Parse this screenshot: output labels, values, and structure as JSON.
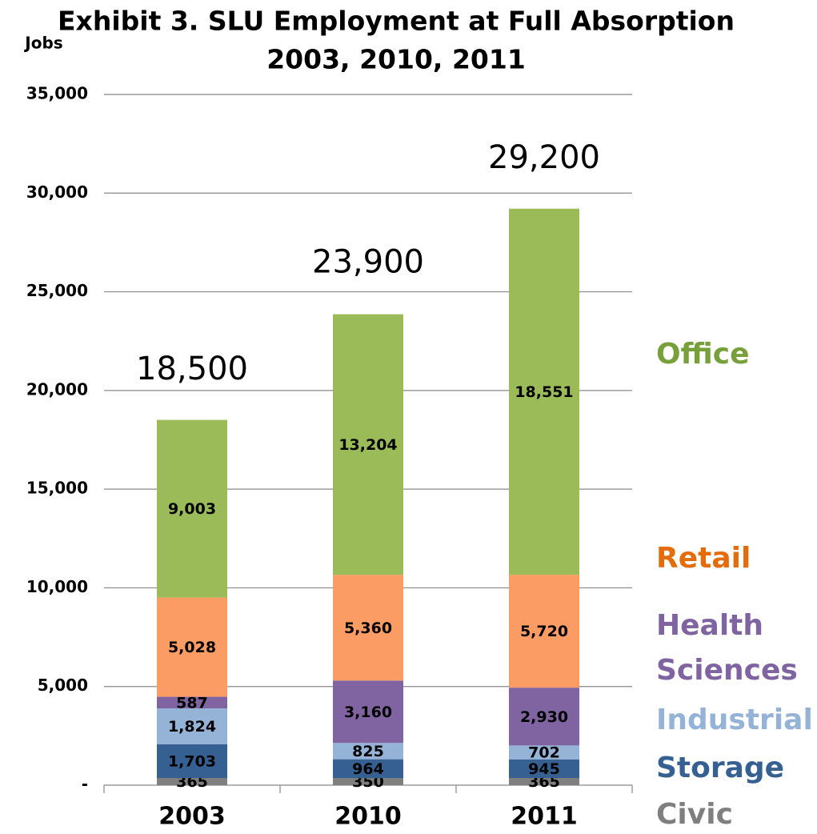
{
  "chart_data": {
    "type": "stacked_bar",
    "title": "Exhibit 3. SLU Employment at Full Absorption",
    "subtitle": "2003, 2010, 2011",
    "y_label": "Jobs",
    "categories": [
      "2003",
      "2010",
      "2011"
    ],
    "series": [
      {
        "name": "Civic",
        "color": "#7f7f7f",
        "label_color": "#7f7f7f",
        "values": [
          365,
          350,
          365
        ],
        "value_labels": [
          "365",
          "350",
          "365"
        ]
      },
      {
        "name": "Storage",
        "color": "#376092",
        "label_color": "#376092",
        "values": [
          1703,
          964,
          945
        ],
        "value_labels": [
          "1,703",
          "964",
          "945"
        ]
      },
      {
        "name": "Industrial",
        "color": "#95b3d7",
        "label_color": "#95b3d7",
        "values": [
          1824,
          825,
          702
        ],
        "value_labels": [
          "1,824",
          "825",
          "702"
        ]
      },
      {
        "name": "Health Sciences",
        "color": "#8064a2",
        "label_color": "#8064a2",
        "values": [
          587,
          3160,
          2930
        ],
        "value_labels": [
          "587",
          "3,160",
          "2,930"
        ]
      },
      {
        "name": "Retail",
        "color": "#fa9c63",
        "label_color": "#e46c0a",
        "values": [
          5028,
          5360,
          5720
        ],
        "value_labels": [
          "5,028",
          "5,360",
          "5,720"
        ]
      },
      {
        "name": "Office",
        "color": "#9bbb59",
        "label_color": "#77a03b",
        "values": [
          9003,
          13204,
          18551
        ],
        "value_labels": [
          "9,003",
          "13,204",
          "18,551"
        ]
      }
    ],
    "totals": [
      18500,
      23900,
      29200
    ],
    "total_labels": [
      "18,500",
      "23,900",
      "29,200"
    ],
    "ylim": [
      0,
      35000
    ],
    "yticks": [
      {
        "value": 0,
        "label": "-"
      },
      {
        "value": 5000,
        "label": "5,000"
      },
      {
        "value": 10000,
        "label": "10,000"
      },
      {
        "value": 15000,
        "label": "15,000"
      },
      {
        "value": 20000,
        "label": "20,000"
      },
      {
        "value": 25000,
        "label": "25,000"
      },
      {
        "value": 30000,
        "label": "30,000"
      },
      {
        "value": 35000,
        "label": "35,000"
      }
    ],
    "grid": true
  }
}
